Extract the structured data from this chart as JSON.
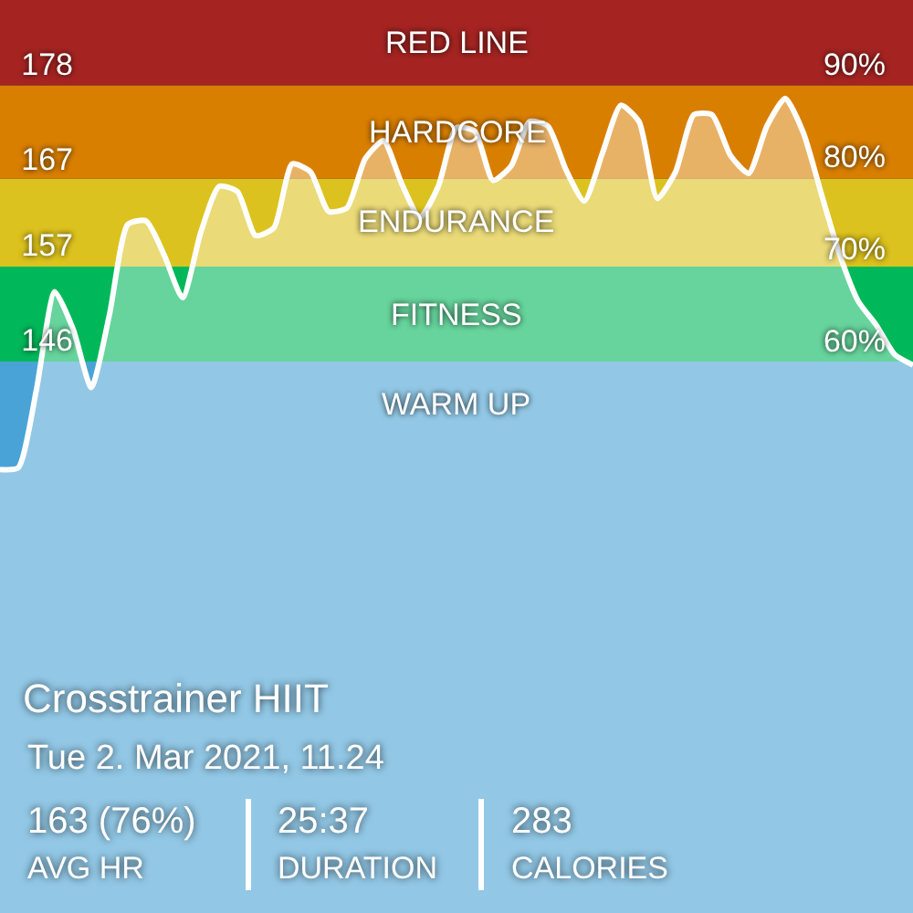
{
  "chart_data": {
    "type": "area",
    "title": "Crosstrainer HIIT",
    "subtitle": "Tue 2. Mar 2021, 11.24",
    "annotations": [
      "163 (76%)",
      "AVG HR",
      "25:37",
      "DURATION",
      "283",
      "CALORIES"
    ],
    "categories": [
      null,
      null,
      null,
      null,
      null,
      null,
      null,
      null,
      null,
      null,
      null,
      null,
      null,
      null,
      null,
      null,
      null,
      null,
      null,
      null,
      null,
      null,
      null,
      null,
      null,
      null,
      null,
      null,
      null,
      null,
      null,
      null,
      null,
      null,
      null,
      null,
      null,
      null,
      null,
      null,
      null,
      null,
      null,
      null,
      null,
      null,
      null,
      null,
      null,
      null,
      null
    ],
    "series": [
      {
        "color": "#ffffff",
        "values": [
          131,
          131.2,
          140.3,
          151.6,
          147.3,
          140.5,
          149,
          159.4,
          159.8,
          155.8,
          150.9,
          158.5,
          163.8,
          163.2,
          158.1,
          159,
          166.4,
          165.5,
          160.9,
          161.3,
          167,
          169.1,
          164.1,
          160.2,
          163.8,
          170.6,
          170.2,
          164.5,
          166.2,
          171.3,
          170.8,
          165.7,
          162.1,
          167.7,
          173.2,
          171.3,
          162.4,
          165.5,
          172.1,
          172.1,
          167.4,
          165.3,
          170.8,
          174,
          170,
          162.8,
          155.8,
          150.5,
          147.7,
          144.3,
          143.1
        ]
      }
    ],
    "ylim": [
      79.6,
      185.4
    ],
    "yticks": [
      146,
      157,
      167,
      178
    ],
    "y2lim": [
      -2.3,
      97
    ],
    "y2ticks": [
      {
        "value": 60,
        "label": "60%"
      },
      {
        "value": 70,
        "label": "70%"
      },
      {
        "value": 80,
        "label": "80%"
      },
      {
        "value": 90,
        "label": "90%"
      }
    ],
    "bands": [
      {
        "axis": "y",
        "from": 79.6,
        "to": 143.5,
        "label": "WARM UP",
        "color": "#4aa3d6"
      },
      {
        "axis": "y",
        "from": 143.5,
        "to": 154.5,
        "label": "FITNESS",
        "color": "#00b85a"
      },
      {
        "axis": "y",
        "from": 154.5,
        "to": 164.7,
        "label": "ENDURANCE",
        "color": "#dcc21e"
      },
      {
        "axis": "y",
        "from": 164.7,
        "to": 175.5,
        "label": "HARDCORE",
        "color": "#d97f00"
      },
      {
        "axis": "y",
        "from": 175.5,
        "to": 185.4,
        "label": "RED LINE",
        "color": "#a52422"
      }
    ],
    "grid": false,
    "legend": false,
    "line_style": "solid",
    "marker": "none"
  }
}
